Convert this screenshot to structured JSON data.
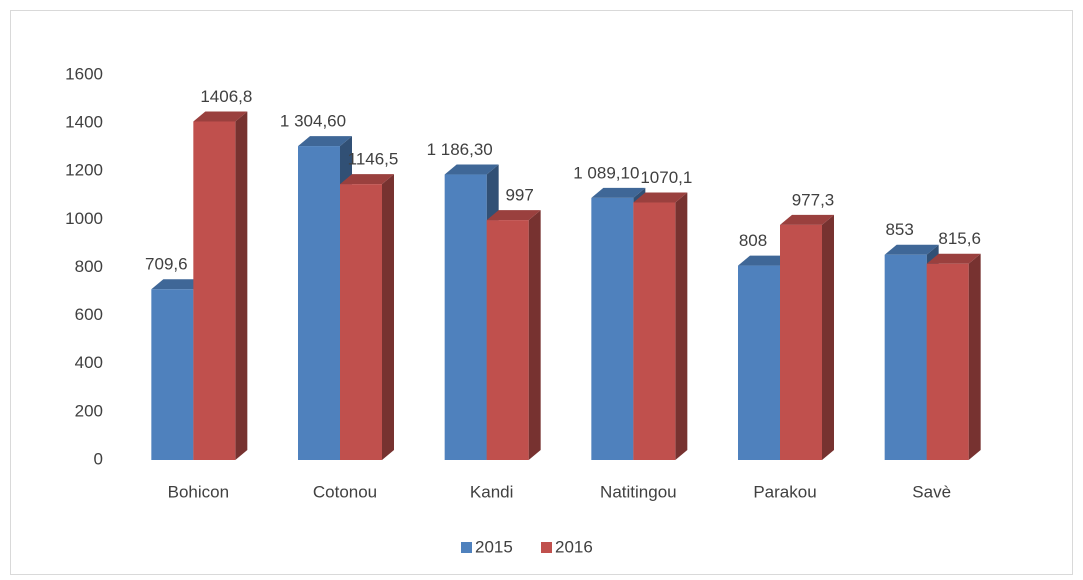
{
  "chart_data": {
    "type": "bar3d",
    "categories": [
      "Bohicon",
      "Cotonou",
      "Kandi",
      "Natitingou",
      "Parakou",
      "Savè"
    ],
    "series": [
      {
        "name": "2015",
        "color": "#4f81bd",
        "values": [
          709.6,
          1304.6,
          1186.3,
          1089.1,
          808,
          853
        ],
        "value_labels": [
          "709,6",
          "1 304,60",
          "1 186,30",
          "1 089,10",
          "808",
          "853"
        ]
      },
      {
        "name": "2016",
        "color": "#c0504d",
        "values": [
          1406.8,
          1146.5,
          997,
          1070.1,
          977.3,
          815.6
        ],
        "value_labels": [
          "1406,8",
          "1146,5",
          "997",
          "1070,1",
          "977,3",
          "815,6"
        ]
      }
    ],
    "ylim": [
      0,
      1600
    ],
    "yticks": [
      0,
      200,
      400,
      600,
      800,
      1000,
      1200,
      1400,
      1600
    ],
    "grid": false,
    "legend": "bottom"
  }
}
